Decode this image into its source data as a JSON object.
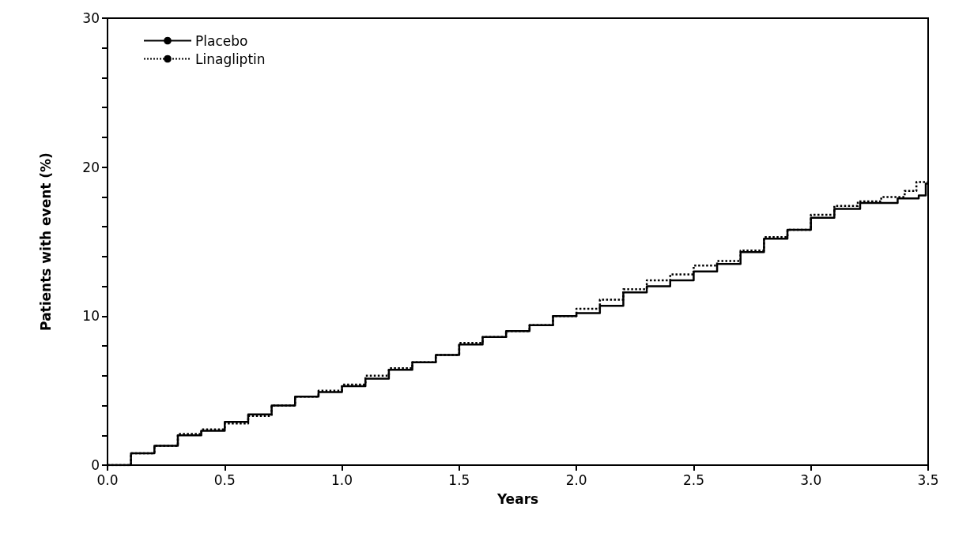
{
  "chart_data": {
    "type": "step",
    "xlabel": "Years",
    "ylabel": "Patients with event (%)",
    "xlim": [
      0,
      3.5
    ],
    "ylim": [
      0,
      30
    ],
    "xticks": [
      {
        "value": 0,
        "label": "0.0"
      },
      {
        "value": 0.5,
        "label": "0.5"
      },
      {
        "value": 1,
        "label": "1.0"
      },
      {
        "value": 1.5,
        "label": "1.5"
      },
      {
        "value": 2,
        "label": "2.0"
      },
      {
        "value": 2.5,
        "label": "2.5"
      },
      {
        "value": 3,
        "label": "3.0"
      },
      {
        "value": 3.5,
        "label": "3.5"
      }
    ],
    "yticks": [
      0,
      {
        "value": 2,
        "label": null
      },
      {
        "value": 4,
        "label": null
      },
      {
        "value": 6,
        "label": null
      },
      {
        "value": 8,
        "label": null
      },
      10,
      {
        "value": 12,
        "label": null
      },
      {
        "value": 14,
        "label": null
      },
      {
        "value": 16,
        "label": null
      },
      {
        "value": 18,
        "label": null
      },
      20,
      {
        "value": 22,
        "label": null
      },
      {
        "value": 24,
        "label": null
      },
      {
        "value": 26,
        "label": null
      },
      {
        "value": 28,
        "label": null
      },
      30
    ],
    "grid": false,
    "legend": "top left",
    "series": [
      {
        "name": "Placebo",
        "color": "#000000",
        "line_style": "solid",
        "x": [
          0,
          0.1,
          0.2,
          0.3,
          0.4,
          0.5,
          0.6,
          0.7,
          0.8,
          0.9,
          1.0,
          1.1,
          1.2,
          1.3,
          1.4,
          1.5,
          1.6,
          1.7,
          1.8,
          1.9,
          2.0,
          2.05,
          2.1,
          2.2,
          2.3,
          2.4,
          2.5,
          2.6,
          2.7,
          2.8,
          2.9,
          3.0,
          3.1,
          3.21,
          3.37,
          3.46,
          3.49,
          3.5
        ],
        "values": [
          0,
          0.8,
          1.3,
          2.0,
          2.3,
          2.9,
          3.4,
          4.0,
          4.6,
          4.9,
          5.3,
          5.8,
          6.4,
          6.9,
          7.4,
          8.1,
          8.6,
          9.0,
          9.4,
          10.0,
          10.2,
          10.2,
          10.7,
          11.6,
          12.0,
          12.4,
          13.0,
          13.5,
          14.3,
          15.2,
          15.8,
          16.6,
          17.2,
          17.6,
          17.9,
          18.1,
          18.9,
          18.9
        ]
      },
      {
        "name": "Linagliptin",
        "color": "#000000",
        "line_style": "dotted",
        "x": [
          0,
          0.1,
          0.2,
          0.3,
          0.4,
          0.5,
          0.6,
          0.7,
          0.8,
          0.9,
          1.0,
          1.1,
          1.2,
          1.3,
          1.4,
          1.5,
          1.6,
          1.7,
          1.8,
          1.9,
          2.0,
          2.1,
          2.2,
          2.3,
          2.4,
          2.5,
          2.6,
          2.7,
          2.8,
          2.9,
          3.0,
          3.1,
          3.2,
          3.3,
          3.4,
          3.45,
          3.5
        ],
        "values": [
          0,
          0.8,
          1.3,
          2.1,
          2.4,
          2.8,
          3.3,
          4.0,
          4.6,
          5.0,
          5.4,
          6.0,
          6.5,
          6.9,
          7.4,
          8.2,
          8.6,
          9.0,
          9.4,
          10.0,
          10.5,
          11.1,
          11.8,
          12.4,
          12.8,
          13.4,
          13.7,
          14.4,
          15.3,
          15.8,
          16.8,
          17.4,
          17.7,
          18.0,
          18.4,
          19.0,
          19.0
        ]
      }
    ]
  }
}
